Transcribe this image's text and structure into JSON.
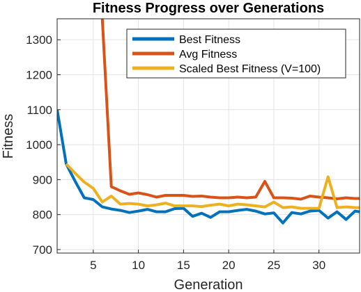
{
  "chart_data": {
    "type": "line",
    "title": "Fitness Progress over Generations",
    "xlabel": "Generation",
    "ylabel": "Fitness",
    "xlim": [
      1,
      34.5
    ],
    "ylim": [
      690,
      1360
    ],
    "xticks": [
      5,
      10,
      15,
      20,
      25,
      30
    ],
    "yticks": [
      700,
      800,
      900,
      1000,
      1100,
      1200,
      1300
    ],
    "grid": true,
    "legend_position": "top-right",
    "x": [
      1,
      2,
      3,
      4,
      5,
      6,
      7,
      8,
      9,
      10,
      11,
      12,
      13,
      14,
      15,
      16,
      17,
      18,
      19,
      20,
      21,
      22,
      23,
      24,
      25,
      26,
      27,
      28,
      29,
      30,
      31,
      32,
      33,
      34,
      34.5
    ],
    "series": [
      {
        "name": "Best Fitness",
        "color": "#0072BD",
        "values": [
          1100,
          945,
          895,
          848,
          843,
          822,
          816,
          812,
          806,
          810,
          815,
          808,
          808,
          817,
          818,
          795,
          804,
          792,
          808,
          808,
          812,
          815,
          810,
          802,
          805,
          776,
          806,
          802,
          810,
          812,
          790,
          808,
          786,
          810,
          808
        ]
      },
      {
        "name": "Avg Fitness",
        "color": "#D95319",
        "values": [
          null,
          null,
          null,
          null,
          null,
          1360,
          880,
          868,
          858,
          862,
          857,
          850,
          855,
          855,
          855,
          852,
          853,
          850,
          848,
          848,
          850,
          848,
          850,
          895,
          848,
          848,
          847,
          844,
          853,
          850,
          848,
          845,
          848,
          846,
          846
        ]
      },
      {
        "name": "Scaled Best Fitness (V=100)",
        "color": "#EDB120",
        "values": [
          null,
          945,
          918,
          893,
          875,
          836,
          853,
          830,
          832,
          830,
          825,
          828,
          833,
          825,
          825,
          825,
          823,
          827,
          830,
          825,
          830,
          828,
          825,
          822,
          836,
          820,
          822,
          818,
          818,
          818,
          908,
          820,
          822,
          820,
          820
        ]
      }
    ]
  }
}
